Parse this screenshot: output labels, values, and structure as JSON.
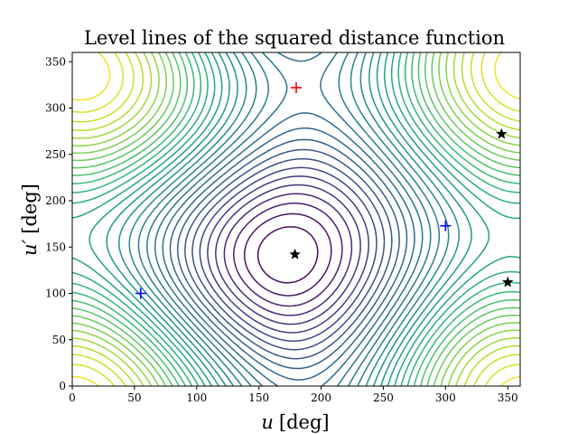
{
  "chart_data": {
    "type": "contour",
    "title": "Level lines of the squared distance function",
    "xlabel_symbol": "u",
    "xlabel_unit": "[deg]",
    "ylabel_symbol": "u′",
    "ylabel_unit": "[deg]",
    "xlim": [
      0,
      360
    ],
    "ylim": [
      0,
      360
    ],
    "xticks": [
      "0",
      "50",
      "100",
      "150",
      "200",
      "250",
      "300",
      "350"
    ],
    "yticks": [
      "0",
      "50",
      "100",
      "150",
      "200",
      "250",
      "300",
      "350"
    ],
    "grid": false,
    "colormap": "viridis",
    "markers": [
      {
        "kind": "plus",
        "color": "#ff0000",
        "x": 180,
        "y": 322
      },
      {
        "kind": "plus",
        "color": "#0000ff",
        "x": 55,
        "y": 100
      },
      {
        "kind": "plus",
        "color": "#0000ff",
        "x": 300,
        "y": 173
      },
      {
        "kind": "star",
        "color": "#000000",
        "x": 179,
        "y": 142
      },
      {
        "kind": "star",
        "color": "#000000",
        "x": 345,
        "y": 272
      },
      {
        "kind": "star",
        "color": "#000000",
        "x": 350,
        "y": 112
      }
    ]
  }
}
